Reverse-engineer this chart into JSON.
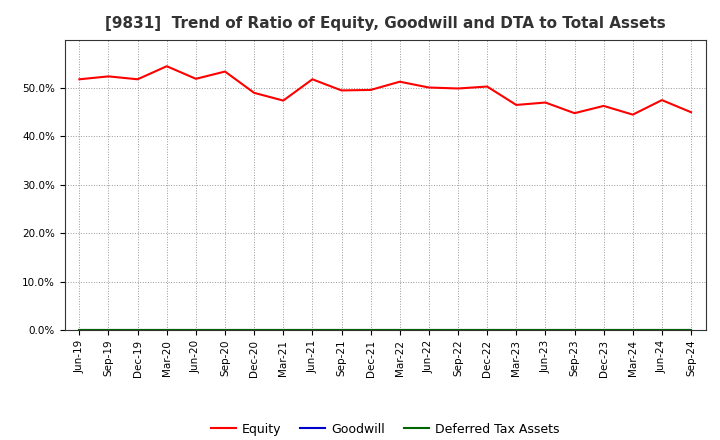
{
  "title": "[9831]  Trend of Ratio of Equity, Goodwill and DTA to Total Assets",
  "x_labels": [
    "Jun-19",
    "Sep-19",
    "Dec-19",
    "Mar-20",
    "Jun-20",
    "Sep-20",
    "Dec-20",
    "Mar-21",
    "Jun-21",
    "Sep-21",
    "Dec-21",
    "Mar-22",
    "Jun-22",
    "Sep-22",
    "Dec-22",
    "Mar-23",
    "Jun-23",
    "Sep-23",
    "Dec-23",
    "Mar-24",
    "Jun-24",
    "Sep-24"
  ],
  "equity": [
    0.518,
    0.524,
    0.518,
    0.545,
    0.519,
    0.534,
    0.49,
    0.474,
    0.518,
    0.495,
    0.496,
    0.513,
    0.501,
    0.499,
    0.503,
    0.465,
    0.47,
    0.448,
    0.463,
    0.445,
    0.475,
    0.45
  ],
  "goodwill": [
    0.0,
    0.0,
    0.0,
    0.0,
    0.0,
    0.0,
    0.0,
    0.0,
    0.0,
    0.0,
    0.0,
    0.0,
    0.0,
    0.0,
    0.0,
    0.0,
    0.0,
    0.0,
    0.0,
    0.0,
    0.0,
    0.0
  ],
  "dta": [
    0.0,
    0.0,
    0.0,
    0.0,
    0.0,
    0.0,
    0.0,
    0.0,
    0.0,
    0.0,
    0.0,
    0.0,
    0.0,
    0.0,
    0.0,
    0.0,
    0.0,
    0.0,
    0.0,
    0.0,
    0.0,
    0.0
  ],
  "equity_color": "#ff0000",
  "goodwill_color": "#0000cc",
  "dta_color": "#006600",
  "ylim": [
    0.0,
    0.6
  ],
  "yticks": [
    0.0,
    0.1,
    0.2,
    0.3,
    0.4,
    0.5
  ],
  "background_color": "#ffffff",
  "plot_bg_color": "#ffffff",
  "grid_color": "#999999",
  "title_fontsize": 11,
  "tick_fontsize": 7.5,
  "legend_labels": [
    "Equity",
    "Goodwill",
    "Deferred Tax Assets"
  ]
}
